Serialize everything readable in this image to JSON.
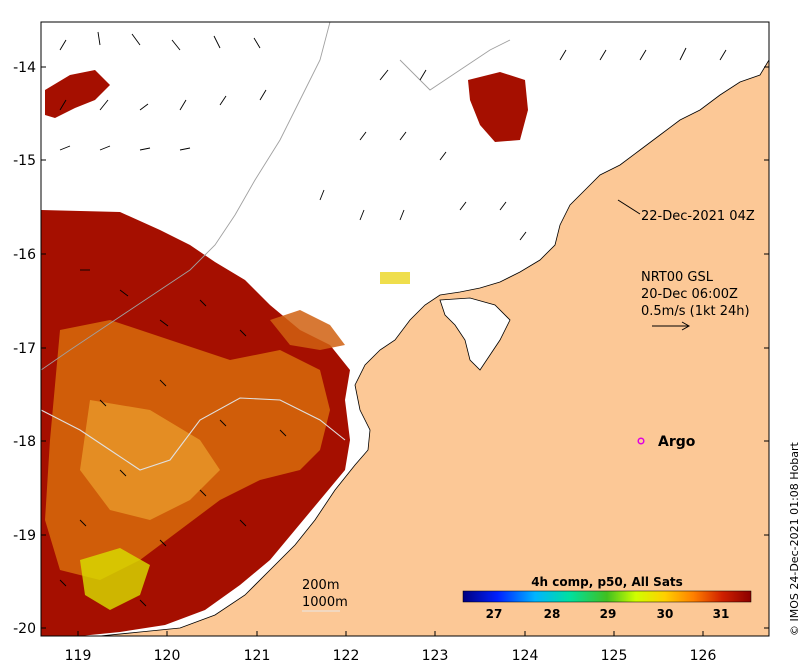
{
  "map": {
    "lat_ticks": [
      "-14",
      "-15",
      "-16",
      "-17",
      "-18",
      "-19",
      "-20"
    ],
    "lon_ticks": [
      "119",
      "120",
      "121",
      "122",
      "123",
      "124",
      "125",
      "126"
    ],
    "labels": {
      "sat_pass": "22-Dec-2021 04Z",
      "current_title": "NRT00 GSL",
      "current_time": "20-Dec 06:00Z",
      "current_scale": "0.5m/s (1kt 24h)",
      "argo": "Argo",
      "contour_200": "200m",
      "contour_1000": "1000m",
      "credit": "© IMOS 24-Dec-2021 01:08 Hobart"
    },
    "colorbar": {
      "title": "4h comp, p50, All Sats",
      "ticks": [
        "27",
        "28",
        "29",
        "30",
        "31"
      ]
    },
    "colors": {
      "land": "#fcc896",
      "sst_hot": "#a50f00",
      "sst_warm": "#d76b0a",
      "argo_marker": "#e000e0",
      "ocean_no_data": "#ffffff"
    }
  }
}
